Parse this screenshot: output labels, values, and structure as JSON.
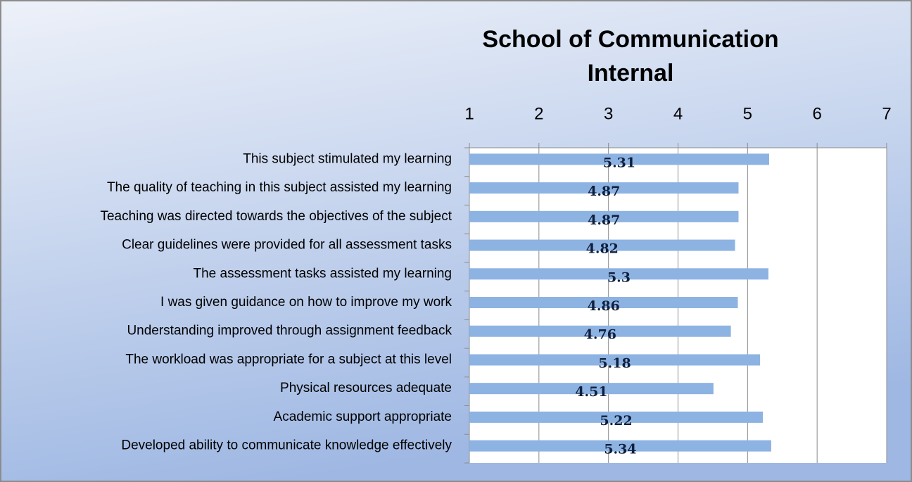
{
  "chart_data": {
    "type": "bar",
    "orientation": "horizontal",
    "title_lines": [
      "School of Communication",
      "Internal"
    ],
    "categories": [
      "This subject stimulated my learning",
      "The quality of teaching in this subject assisted my learning",
      "Teaching was directed towards the objectives of the subject",
      "Clear guidelines were provided for all assessment tasks",
      "The assessment tasks assisted my learning",
      "I was given guidance on how to improve my work",
      "Understanding improved through assignment feedback",
      "The workload was appropriate for a subject at this level",
      "Physical resources adequate",
      "Academic support appropriate",
      "Developed ability to communicate knowledge effectively"
    ],
    "values": [
      5.31,
      4.87,
      4.87,
      4.82,
      5.3,
      4.86,
      4.76,
      5.18,
      4.51,
      5.22,
      5.34
    ],
    "color": "#8db3e2",
    "xlim": [
      1,
      7
    ],
    "xticks": [
      1,
      2,
      3,
      4,
      5,
      6,
      7
    ],
    "grid": true
  }
}
